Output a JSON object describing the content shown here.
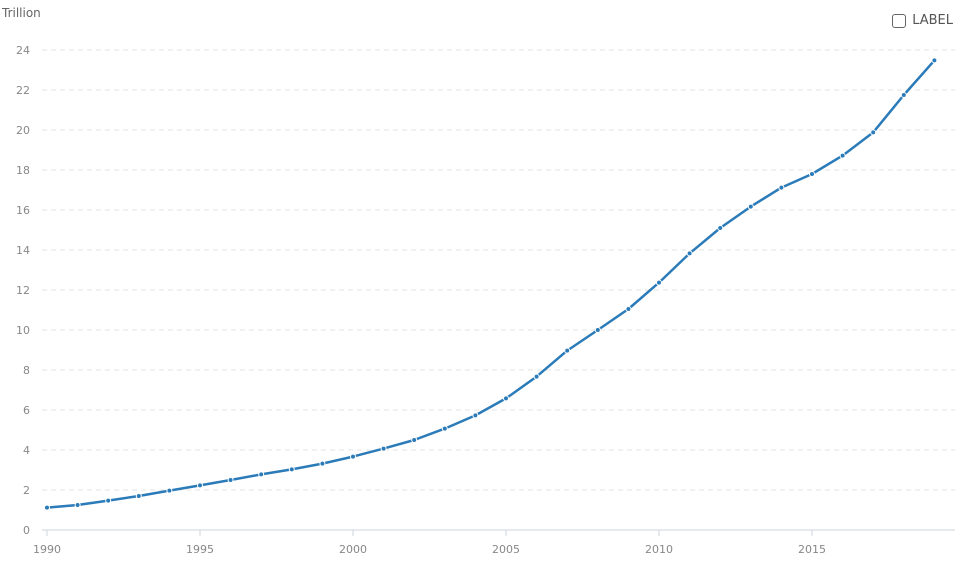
{
  "chart_data": {
    "type": "line",
    "title": "",
    "xlabel": "",
    "ylabel": "Trillion",
    "unit_label": "Trillion",
    "legend_label": "LABEL",
    "legend_checked": false,
    "color": "#2b7bb9",
    "grid": true,
    "xlim": [
      1990,
      2019
    ],
    "ylim": [
      0,
      24
    ],
    "x_ticks": [
      1990,
      1995,
      2000,
      2005,
      2010,
      2015
    ],
    "y_ticks": [
      0,
      2,
      4,
      6,
      8,
      10,
      12,
      14,
      16,
      18,
      20,
      22,
      24
    ],
    "x": [
      1990,
      1991,
      1992,
      1993,
      1994,
      1995,
      1996,
      1997,
      1998,
      1999,
      2000,
      2001,
      2002,
      2003,
      2004,
      2005,
      2006,
      2007,
      2008,
      2009,
      2010,
      2011,
      2012,
      2013,
      2014,
      2015,
      2016,
      2017,
      2018,
      2019
    ],
    "values": [
      1.12,
      1.25,
      1.47,
      1.7,
      1.97,
      2.23,
      2.5,
      2.78,
      3.03,
      3.32,
      3.67,
      4.07,
      4.5,
      5.07,
      5.73,
      6.58,
      7.67,
      8.97,
      10.0,
      11.05,
      12.37,
      13.83,
      15.1,
      16.17,
      17.12,
      17.8,
      18.72,
      19.88,
      21.75,
      23.48
    ]
  }
}
